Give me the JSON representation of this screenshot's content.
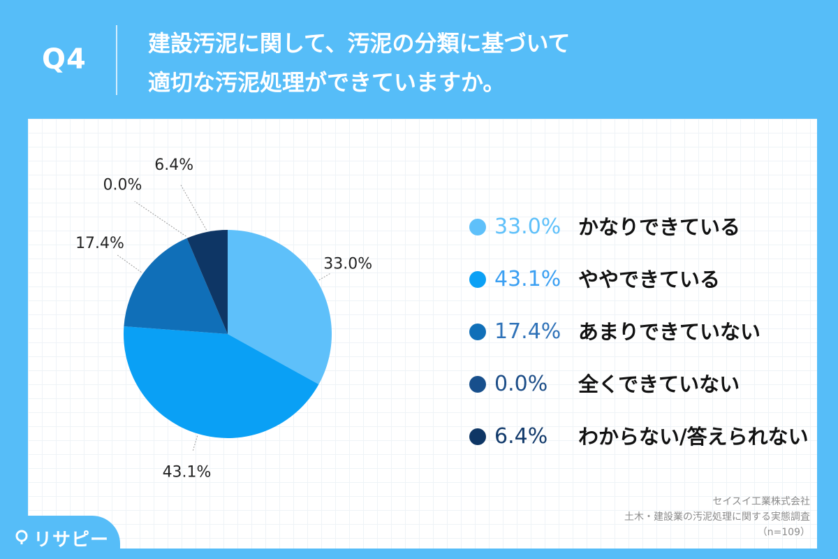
{
  "header": {
    "question": "Q4",
    "title_line1": "建設汚泥に関して、汚泥の分類に基づいて",
    "title_line2": "適切な汚泥処理ができていますか。"
  },
  "chart_data": {
    "type": "pie",
    "start_angle_deg": 0,
    "direction": "clockwise",
    "slices": [
      {
        "label": "かなりできている",
        "value": 33.0,
        "value_text": "33.0%",
        "color": "#5ec0fa",
        "text_color": "#5ec0fa"
      },
      {
        "label": "ややできている",
        "value": 43.1,
        "value_text": "43.1%",
        "color": "#0aa0f5",
        "text_color": "#3a9ff2"
      },
      {
        "label": "あまりできていない",
        "value": 17.4,
        "value_text": "17.4%",
        "color": "#106fb8",
        "text_color": "#2f72b8"
      },
      {
        "label": "全くできていない",
        "value": 0.0,
        "value_text": "0.0%",
        "color": "#174f8c",
        "text_color": "#1d4e88"
      },
      {
        "label": "わからない/答えられない",
        "value": 6.4,
        "value_text": "6.4%",
        "color": "#0e3665",
        "text_color": "#123a6b"
      }
    ]
  },
  "footer": {
    "company": "セイスイ工業株式会社",
    "survey": "土木・建設業の汚泥処理に関する実態調査",
    "sample": "（n=109）"
  },
  "brand": {
    "name": "リサピー"
  }
}
